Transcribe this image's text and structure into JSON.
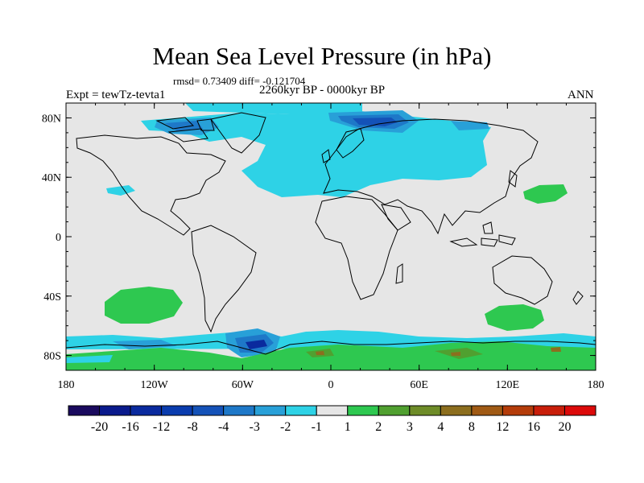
{
  "title": "Mean Sea Level Pressure (in hPa)",
  "stats": "rmsd= 0.73409 diff= -0.121704",
  "expt_label": "Expt = tewTz-tevta1",
  "period": "2260kyr BP - 0000kyr BP",
  "season": "ANN",
  "axes": {
    "x_ticks": [
      "180",
      "120W",
      "60W",
      "0",
      "60E",
      "120E",
      "180"
    ],
    "y_ticks": [
      "80N",
      "40N",
      "0",
      "40S",
      "80S"
    ]
  },
  "colorbar": {
    "labels": [
      "-20",
      "-16",
      "-12",
      "-8",
      "-4",
      "-3",
      "-2",
      "-1",
      "1",
      "2",
      "3",
      "4",
      "8",
      "12",
      "16",
      "20"
    ],
    "colors": [
      "#1a0a5e",
      "#0a1a8c",
      "#0a2a9e",
      "#0a3cae",
      "#1452b8",
      "#1e78c8",
      "#28a0d8",
      "#2ed2e6",
      "#e6e6e6",
      "#2ec850",
      "#50a030",
      "#6e8c28",
      "#8c6e1e",
      "#a05a14",
      "#b43c0a",
      "#c81e0a",
      "#dc0a0a"
    ]
  },
  "map_colors": {
    "background": "#e6e6e6",
    "cyan": "#2ed2e6",
    "light_blue": "#28a0d8",
    "mid_blue": "#1e78c8",
    "dark_blue": "#1452b8",
    "navy": "#0a2a9e",
    "green": "#2ec850",
    "olive": "#50a030",
    "brown": "#8c6e1e"
  }
}
